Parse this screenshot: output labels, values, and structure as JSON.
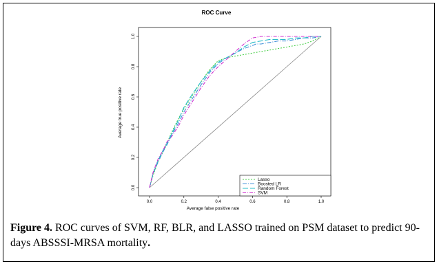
{
  "caption": {
    "label": "Figure 4.",
    "text": " ROC curves of SVM, RF, BLR, and LASSO trained on PSM dataset to predict 90-days ABSSSI-MRSA mortality",
    "end": "."
  },
  "chart_data": {
    "type": "line",
    "title": "ROC Curve",
    "xlabel": "Average false positive rate",
    "ylabel": "Average true positive rate",
    "xlim": [
      0,
      1
    ],
    "ylim": [
      0,
      1
    ],
    "xticks": [
      "0.0",
      "0.2",
      "0.4",
      "0.6",
      "0.8",
      "1.0"
    ],
    "yticks": [
      "0.0",
      "0.2",
      "0.4",
      "0.6",
      "0.8",
      "1.0"
    ],
    "grid": false,
    "legend_position": "bottom-right",
    "reference_line": [
      [
        0,
        0
      ],
      [
        1,
        1
      ]
    ],
    "series": [
      {
        "name": "Lasso",
        "color": "#4cd04c",
        "dash": "2,2",
        "x": [
          0,
          0.02,
          0.05,
          0.08,
          0.1,
          0.13,
          0.17,
          0.2,
          0.25,
          0.3,
          0.35,
          0.4,
          0.45,
          0.5,
          0.55,
          0.6,
          0.65,
          0.7,
          0.75,
          0.8,
          0.85,
          0.9,
          0.95,
          1.0
        ],
        "y": [
          0,
          0.08,
          0.17,
          0.24,
          0.29,
          0.37,
          0.46,
          0.52,
          0.61,
          0.7,
          0.78,
          0.84,
          0.86,
          0.87,
          0.88,
          0.89,
          0.9,
          0.91,
          0.92,
          0.93,
          0.94,
          0.95,
          0.97,
          1.0
        ]
      },
      {
        "name": "Boosted LR",
        "color": "#3f8fd8",
        "dash": "6,2,1,2",
        "x": [
          0,
          0.02,
          0.05,
          0.08,
          0.1,
          0.13,
          0.17,
          0.2,
          0.25,
          0.3,
          0.35,
          0.4,
          0.45,
          0.5,
          0.55,
          0.6,
          0.62,
          0.65,
          0.7,
          0.75,
          0.8,
          0.85,
          0.9,
          0.95,
          1.0
        ],
        "y": [
          0,
          0.09,
          0.17,
          0.24,
          0.28,
          0.35,
          0.43,
          0.5,
          0.59,
          0.68,
          0.76,
          0.82,
          0.86,
          0.89,
          0.92,
          0.94,
          0.95,
          0.95,
          0.96,
          0.97,
          0.97,
          0.98,
          0.99,
          0.99,
          1.0
        ]
      },
      {
        "name": "Random Forest",
        "color": "#28bcc8",
        "dash": "8,3",
        "x": [
          0,
          0.02,
          0.05,
          0.08,
          0.1,
          0.13,
          0.17,
          0.2,
          0.25,
          0.3,
          0.35,
          0.4,
          0.45,
          0.5,
          0.55,
          0.6,
          0.65,
          0.7,
          0.75,
          0.8,
          0.85,
          0.9,
          0.95,
          1.0
        ],
        "y": [
          0,
          0.09,
          0.18,
          0.25,
          0.29,
          0.36,
          0.45,
          0.53,
          0.62,
          0.7,
          0.77,
          0.83,
          0.86,
          0.89,
          0.93,
          0.96,
          0.97,
          0.98,
          0.98,
          0.98,
          0.99,
          0.99,
          1.0,
          1.0
        ]
      },
      {
        "name": "SVM",
        "color": "#d030d0",
        "dash": "5,2,1,2",
        "x": [
          0,
          0.02,
          0.05,
          0.08,
          0.1,
          0.13,
          0.17,
          0.2,
          0.25,
          0.3,
          0.35,
          0.4,
          0.45,
          0.5,
          0.55,
          0.6,
          0.65,
          0.7,
          0.75,
          0.8,
          0.85,
          0.9,
          0.95,
          1.0
        ],
        "y": [
          0,
          0.1,
          0.19,
          0.25,
          0.3,
          0.34,
          0.41,
          0.48,
          0.57,
          0.66,
          0.74,
          0.8,
          0.85,
          0.9,
          0.95,
          0.99,
          1.0,
          1.0,
          1.0,
          1.0,
          1.0,
          1.0,
          1.0,
          1.0
        ]
      }
    ]
  }
}
